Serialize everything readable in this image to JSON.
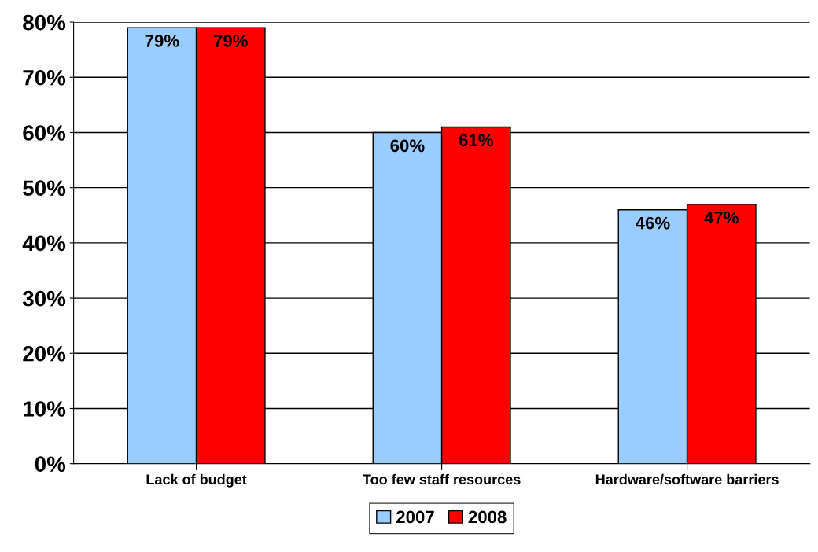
{
  "chart_data": {
    "type": "bar",
    "categories": [
      "Lack of budget",
      "Too few staff resources",
      "Hardware/software barriers"
    ],
    "series": [
      {
        "name": "2007",
        "color": "#99ccff",
        "values": [
          79,
          60,
          46
        ]
      },
      {
        "name": "2008",
        "color": "#ff0000",
        "values": [
          79,
          61,
          47
        ]
      }
    ],
    "value_labels": [
      [
        "79%",
        "60%",
        "46%"
      ],
      [
        "79%",
        "61%",
        "47%"
      ]
    ],
    "ylim": [
      0,
      80
    ],
    "yticks": [
      {
        "value": 0,
        "label": "0%"
      },
      {
        "value": 10,
        "label": "10%"
      },
      {
        "value": 20,
        "label": "20%"
      },
      {
        "value": 30,
        "label": "30%"
      },
      {
        "value": 40,
        "label": "40%"
      },
      {
        "value": 50,
        "label": "50%"
      },
      {
        "value": 60,
        "label": "60%"
      },
      {
        "value": 70,
        "label": "70%"
      },
      {
        "value": 80,
        "label": "80%"
      }
    ],
    "grid": "y",
    "legend": "bottom"
  }
}
